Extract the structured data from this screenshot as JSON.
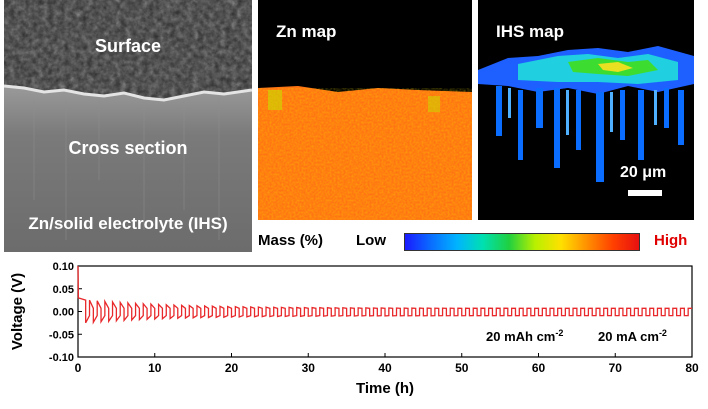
{
  "sem_panel": {
    "surface_label": "Surface",
    "cross_section_label": "Cross section",
    "sample_label": "Zn/solid electrolyte (IHS)"
  },
  "zn_map": {
    "label": "Zn map"
  },
  "ihs_map": {
    "label": "IHS map",
    "scale_bar_label": "20 μm"
  },
  "legend": {
    "mass_label": "Mass (%)",
    "low_label": "Low",
    "high_label": "High",
    "colors": [
      "#1a1aff",
      "#00b4ff",
      "#20d040",
      "#ffe000",
      "#ff4000",
      "#e81010"
    ]
  },
  "chart_data": {
    "type": "line",
    "xlabel": "Time (h)",
    "ylabel": "Voltage (V)",
    "xlim": [
      0,
      80
    ],
    "ylim": [
      -0.1,
      0.1
    ],
    "xticks": [
      0,
      10,
      20,
      30,
      40,
      50,
      60,
      70,
      80
    ],
    "yticks": [
      0.1,
      0.05,
      0.0,
      -0.05,
      -0.1
    ],
    "ytick_labels": [
      "0.10",
      "0.05",
      "0.00",
      "-0.05",
      "-0.10"
    ],
    "annotation": {
      "capacity": "20 mAh cm",
      "current": "20 mA cm",
      "superscript": "-2"
    },
    "series": [
      {
        "color": "#e8282a",
        "cycle_period_h": 1,
        "start_spike_v": 0.1,
        "initial_plating_v": 0.03,
        "charge_v_start": 0.025,
        "charge_v_end": 0.007,
        "discharge_v_start": -0.025,
        "discharge_v_end": -0.009
      }
    ]
  }
}
